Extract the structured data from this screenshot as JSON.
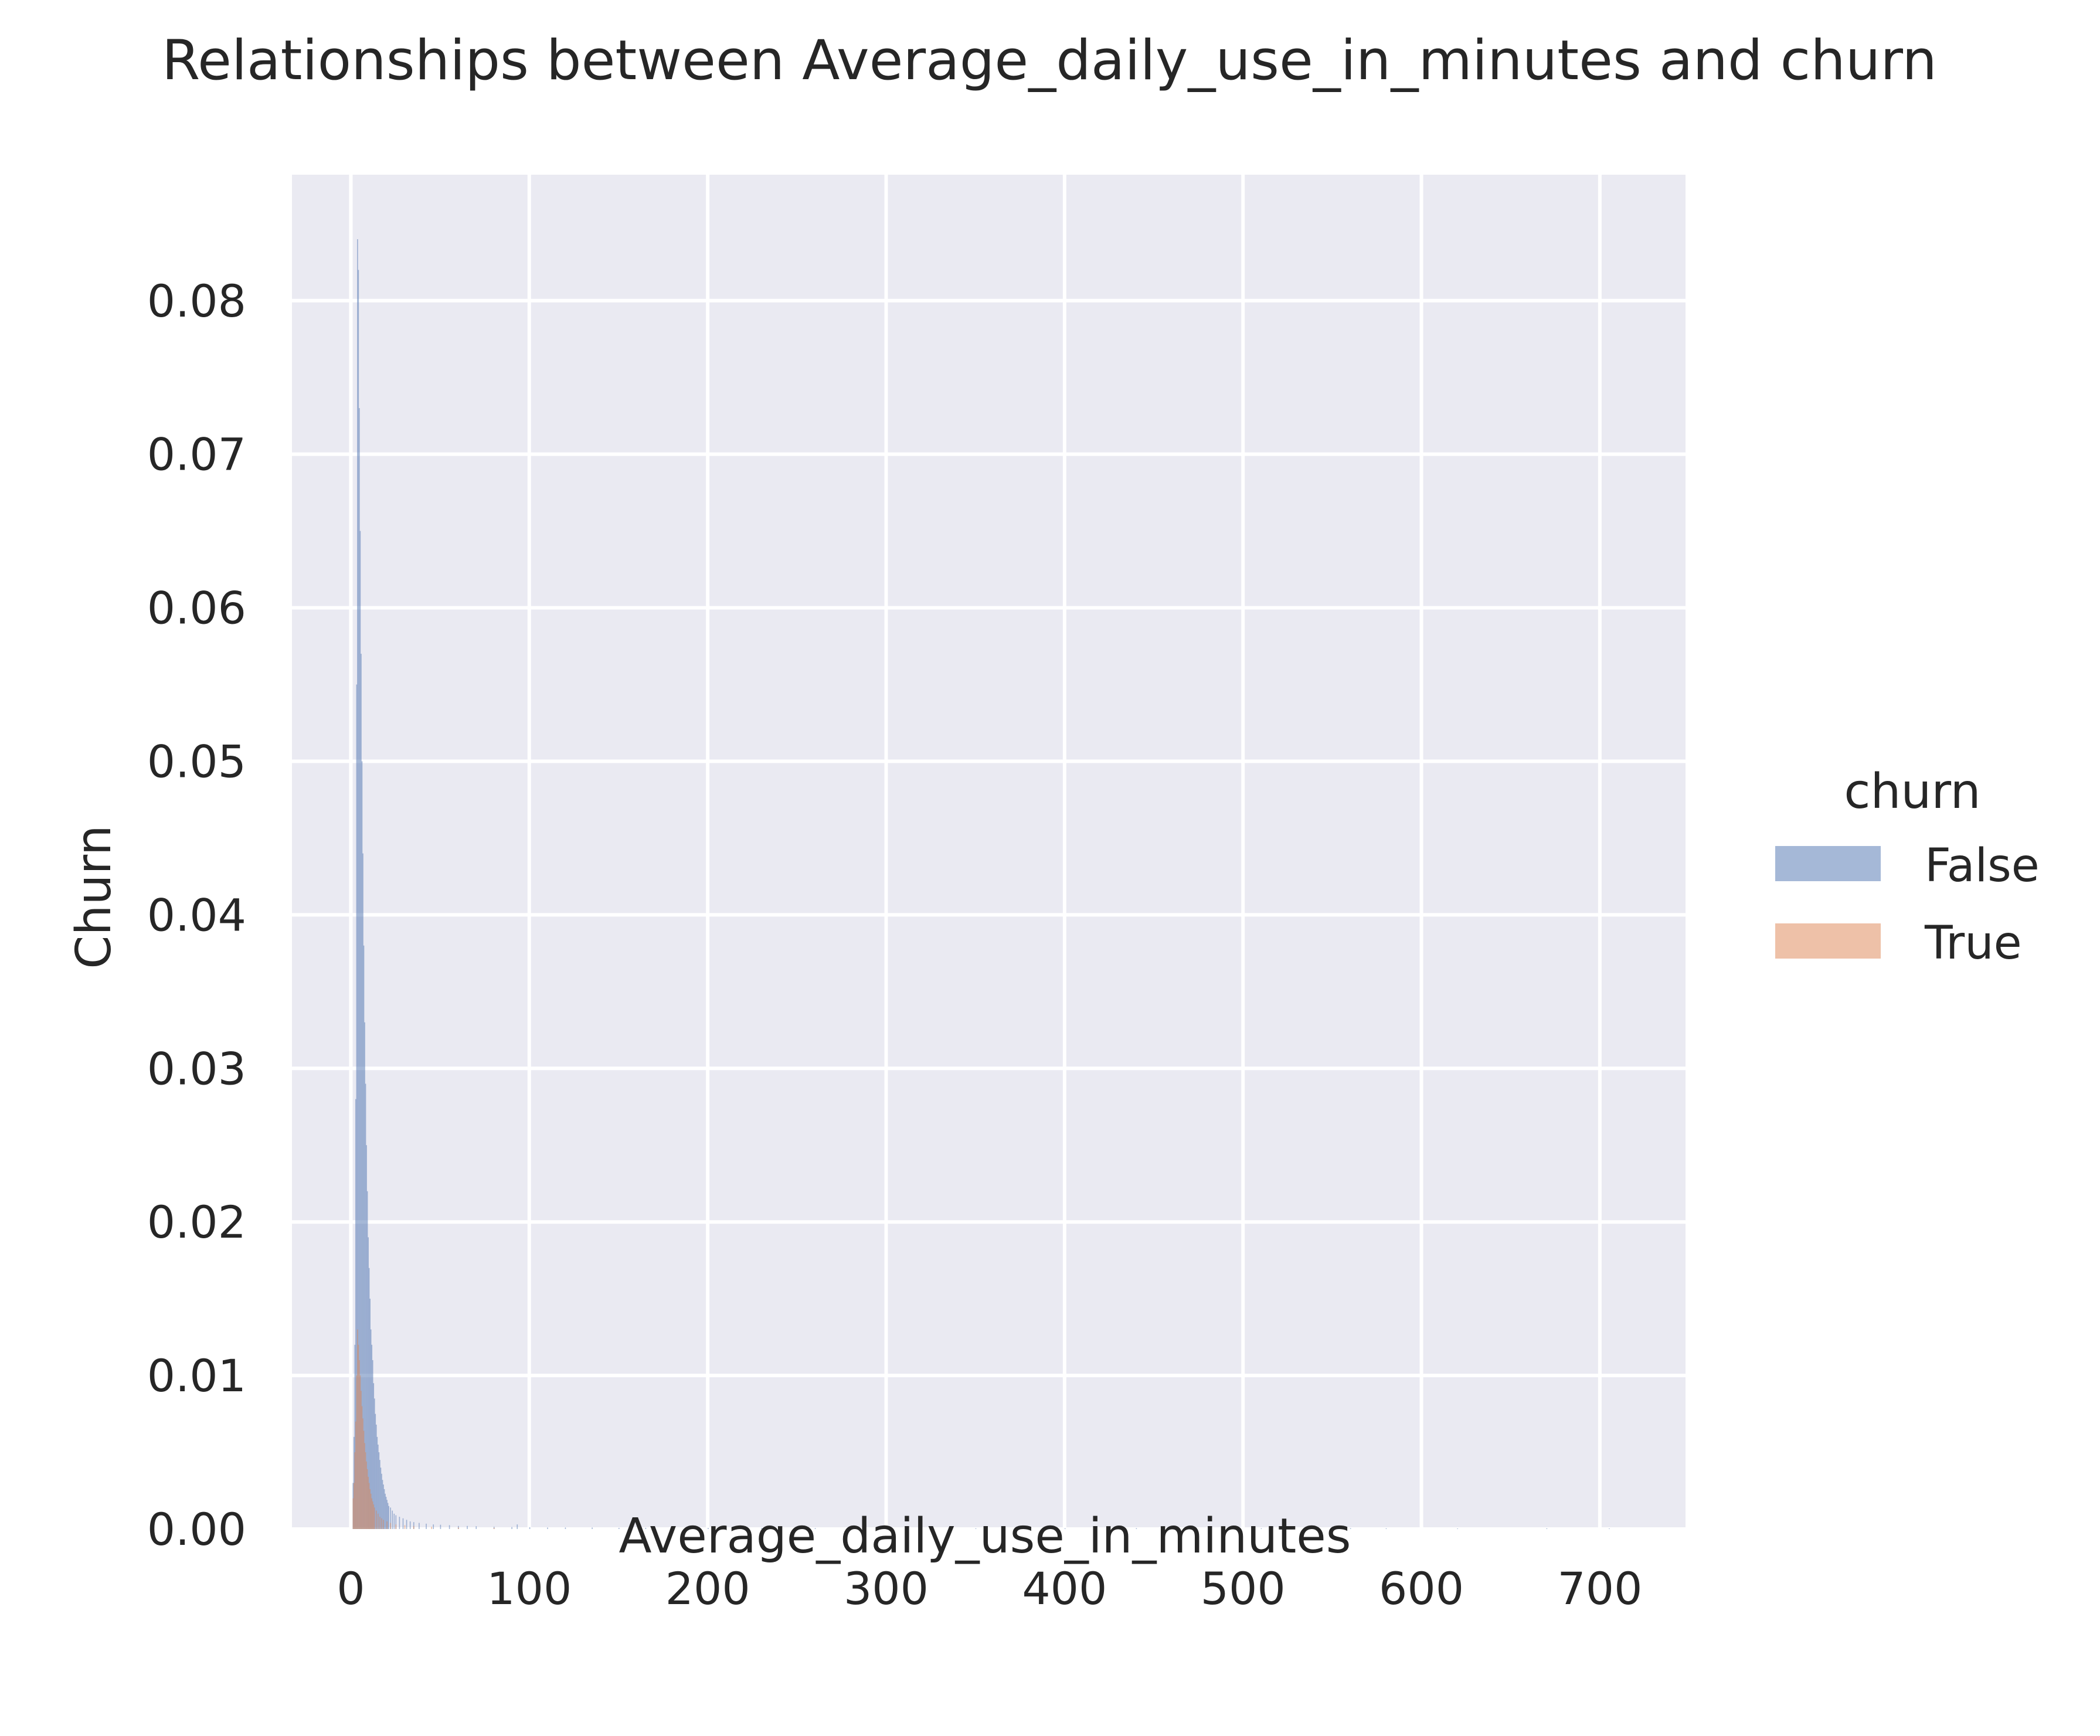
{
  "chart_data": {
    "type": "histogram",
    "title": "Relationships between Average_daily_use_in_minutes and churn",
    "xlabel": "Average_daily_use_in_minutes",
    "ylabel": "Churn",
    "xlim": [
      -33,
      748
    ],
    "ylim": [
      0,
      0.0882
    ],
    "xticks": [
      0,
      100,
      200,
      300,
      400,
      500,
      600,
      700
    ],
    "xtick_labels": [
      "0",
      "100",
      "200",
      "300",
      "400",
      "500",
      "600",
      "700"
    ],
    "yticks": [
      0,
      0.01,
      0.02,
      0.03,
      0.04,
      0.05,
      0.06,
      0.07,
      0.08
    ],
    "ytick_labels": [
      "0.00",
      "0.01",
      "0.02",
      "0.03",
      "0.04",
      "0.05",
      "0.06",
      "0.07",
      "0.08"
    ],
    "grid": true,
    "legend": {
      "title": "churn",
      "placement": "right"
    },
    "bin_width": 0.5,
    "series": [
      {
        "name": "False",
        "color": "#4c72b0",
        "bins": [
          [
            1,
            0.003
          ],
          [
            1.5,
            0.006
          ],
          [
            2,
            0.012
          ],
          [
            2.5,
            0.028
          ],
          [
            3,
            0.055
          ],
          [
            3.5,
            0.084
          ],
          [
            4,
            0.082
          ],
          [
            4.5,
            0.073
          ],
          [
            5,
            0.065
          ],
          [
            5.5,
            0.057
          ],
          [
            6,
            0.05
          ],
          [
            6.5,
            0.044
          ],
          [
            7,
            0.038
          ],
          [
            7.5,
            0.033
          ],
          [
            8,
            0.029
          ],
          [
            8.5,
            0.025
          ],
          [
            9,
            0.022
          ],
          [
            9.5,
            0.019
          ],
          [
            10,
            0.017
          ],
          [
            10.5,
            0.015
          ],
          [
            11,
            0.013
          ],
          [
            11.5,
            0.012
          ],
          [
            12,
            0.011
          ],
          [
            12.5,
            0.0095
          ],
          [
            13,
            0.0085
          ],
          [
            13.5,
            0.0075
          ],
          [
            14,
            0.0068
          ],
          [
            14.5,
            0.006
          ],
          [
            15,
            0.0055
          ],
          [
            15.5,
            0.005
          ],
          [
            16,
            0.0045
          ],
          [
            16.5,
            0.004
          ],
          [
            17,
            0.0036
          ],
          [
            17.5,
            0.0032
          ],
          [
            18,
            0.0029
          ],
          [
            18.5,
            0.0026
          ],
          [
            19,
            0.0023
          ],
          [
            19.5,
            0.0021
          ],
          [
            20,
            0.0019
          ],
          [
            20.5,
            0.0017
          ],
          [
            21,
            0.0015
          ],
          [
            22,
            0.0014
          ],
          [
            23,
            0.0012
          ],
          [
            24,
            0.001
          ],
          [
            25,
            0.0009
          ],
          [
            27,
            0.0008
          ],
          [
            29,
            0.0007
          ],
          [
            31,
            0.0006
          ],
          [
            33,
            0.0005
          ],
          [
            35,
            0.00045
          ],
          [
            38,
            0.0004
          ],
          [
            42,
            0.00035
          ],
          [
            46,
            0.0003
          ],
          [
            50,
            0.00028
          ],
          [
            55,
            0.00025
          ],
          [
            60,
            0.0002
          ],
          [
            65,
            0.0002
          ],
          [
            70,
            0.00018
          ],
          [
            80,
            0.00015
          ],
          [
            90,
            0.00013
          ],
          [
            93,
            0.0003
          ],
          [
            100,
            0.00012
          ],
          [
            110,
            0.0001
          ],
          [
            120,
            0.0001
          ],
          [
            135,
            0.0001
          ],
          [
            150,
            8e-05
          ],
          [
            165,
            8e-05
          ],
          [
            180,
            8e-05
          ],
          [
            200,
            7e-05
          ],
          [
            230,
            7e-05
          ],
          [
            260,
            6e-05
          ],
          [
            300,
            6e-05
          ],
          [
            350,
            5e-05
          ],
          [
            400,
            5e-05
          ],
          [
            440,
            6e-05
          ],
          [
            470,
            5e-05
          ],
          [
            510,
            5e-05
          ],
          [
            560,
            6e-05
          ],
          [
            580,
            5e-05
          ],
          [
            620,
            4e-05
          ],
          [
            670,
            5e-05
          ],
          [
            705,
            4e-05
          ]
        ]
      },
      {
        "name": "True",
        "color": "#dd8452",
        "bins": [
          [
            1,
            0.002
          ],
          [
            1.5,
            0.003
          ],
          [
            2,
            0.005
          ],
          [
            2.5,
            0.007
          ],
          [
            3,
            0.01
          ],
          [
            3.5,
            0.013
          ],
          [
            4,
            0.012
          ],
          [
            4.5,
            0.011
          ],
          [
            5,
            0.01
          ],
          [
            5.5,
            0.009
          ],
          [
            6,
            0.008
          ],
          [
            6.5,
            0.0072
          ],
          [
            7,
            0.0064
          ],
          [
            7.5,
            0.0056
          ],
          [
            8,
            0.005
          ],
          [
            8.5,
            0.0044
          ],
          [
            9,
            0.0039
          ],
          [
            9.5,
            0.0034
          ],
          [
            10,
            0.003
          ],
          [
            10.5,
            0.0026
          ],
          [
            11,
            0.0023
          ],
          [
            11.5,
            0.002
          ],
          [
            12,
            0.0018
          ],
          [
            12.5,
            0.0016
          ],
          [
            13,
            0.0014
          ],
          [
            14,
            0.0012
          ],
          [
            15,
            0.001
          ],
          [
            16,
            0.0008
          ],
          [
            17,
            0.0007
          ],
          [
            18,
            0.0006
          ],
          [
            20,
            0.0005
          ],
          [
            22,
            0.0004
          ],
          [
            25,
            0.0003
          ],
          [
            30,
            0.00025
          ],
          [
            35,
            0.0002
          ],
          [
            45,
            0.00015
          ],
          [
            60,
            0.0001
          ],
          [
            80,
            8e-05
          ]
        ]
      }
    ]
  }
}
